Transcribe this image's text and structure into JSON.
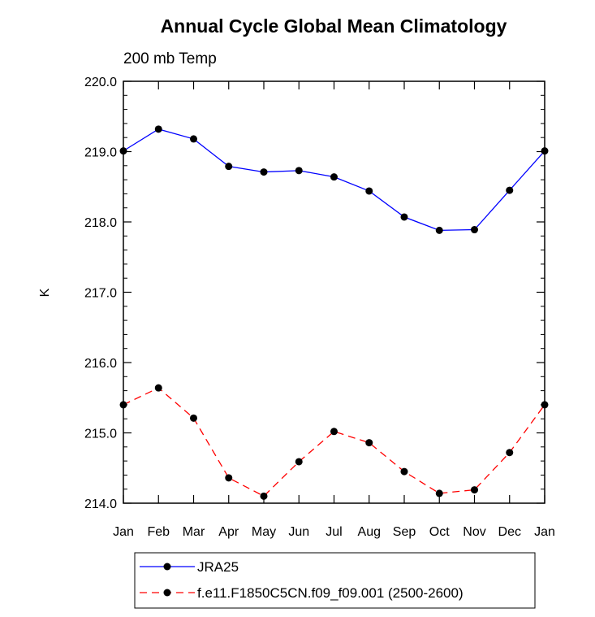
{
  "chart_data": {
    "type": "line",
    "title": "Annual Cycle Global Mean Climatology",
    "subtitle": "200 mb Temp",
    "xlabel": "",
    "ylabel": "K",
    "categories": [
      "Jan",
      "Feb",
      "Mar",
      "Apr",
      "May",
      "Jun",
      "Jul",
      "Aug",
      "Sep",
      "Oct",
      "Nov",
      "Dec",
      "Jan"
    ],
    "ylim": [
      214.0,
      220.0
    ],
    "yticks": [
      "214.0",
      "215.0",
      "216.0",
      "217.0",
      "218.0",
      "219.0",
      "220.0"
    ],
    "grid": false,
    "legend_position": "bottom",
    "series": [
      {
        "name": "JRA25",
        "color": "#0000ff",
        "line_style": "solid",
        "marker": "filled-circle",
        "values": [
          219.01,
          219.32,
          219.18,
          218.79,
          218.71,
          218.73,
          218.64,
          218.44,
          218.07,
          217.88,
          217.89,
          218.45,
          219.01
        ]
      },
      {
        "name": "f.e11.F1850C5CN.f09_f09.001 (2500-2600)",
        "color": "#ff0000",
        "line_style": "dashed",
        "marker": "filled-circle",
        "values": [
          215.4,
          215.64,
          215.21,
          214.36,
          214.1,
          214.59,
          215.02,
          214.86,
          214.45,
          214.14,
          214.19,
          214.72,
          215.4
        ]
      }
    ]
  }
}
